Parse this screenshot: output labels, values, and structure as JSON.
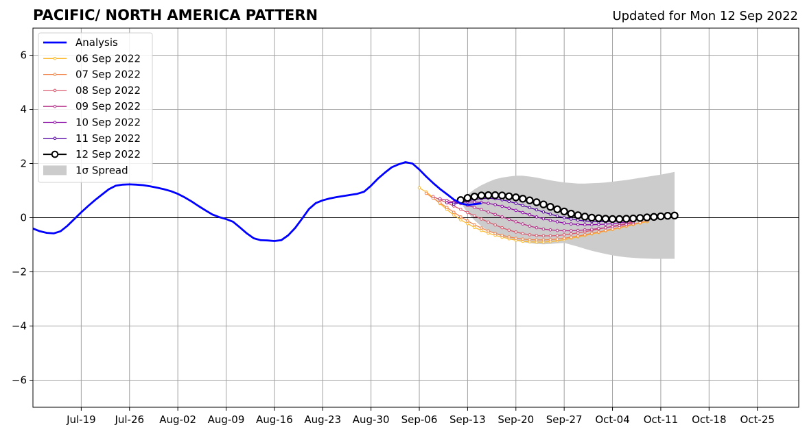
{
  "title": "PACIFIC/ NORTH AMERICA PATTERN",
  "subtitle": "Updated for Mon 12 Sep 2022",
  "chart_data": {
    "type": "line",
    "xaxis": {
      "start": "2022-07-12",
      "end": "2022-10-31",
      "ticks": [
        {
          "date": "2022-07-19",
          "label": "Jul-19"
        },
        {
          "date": "2022-07-26",
          "label": "Jul-26"
        },
        {
          "date": "2022-08-02",
          "label": "Aug-02"
        },
        {
          "date": "2022-08-09",
          "label": "Aug-09"
        },
        {
          "date": "2022-08-16",
          "label": "Aug-16"
        },
        {
          "date": "2022-08-23",
          "label": "Aug-23"
        },
        {
          "date": "2022-08-30",
          "label": "Aug-30"
        },
        {
          "date": "2022-09-06",
          "label": "Sep-06"
        },
        {
          "date": "2022-09-13",
          "label": "Sep-13"
        },
        {
          "date": "2022-09-20",
          "label": "Sep-20"
        },
        {
          "date": "2022-09-27",
          "label": "Sep-27"
        },
        {
          "date": "2022-10-04",
          "label": "Oct-04"
        },
        {
          "date": "2022-10-11",
          "label": "Oct-11"
        },
        {
          "date": "2022-10-18",
          "label": "Oct-18"
        },
        {
          "date": "2022-10-25",
          "label": "Oct-25"
        }
      ]
    },
    "yaxis": {
      "ylim": [
        -7,
        7
      ],
      "ticks": [
        {
          "value": 6,
          "label": "6"
        },
        {
          "value": 4,
          "label": "4"
        },
        {
          "value": 2,
          "label": "2"
        },
        {
          "value": 0,
          "label": "0"
        },
        {
          "value": -2,
          "label": "−2"
        },
        {
          "value": -4,
          "label": "−4"
        },
        {
          "value": -6,
          "label": "−6"
        }
      ]
    },
    "grid": true,
    "zero_line": true,
    "legend_position": "top-left",
    "analysis": {
      "name": "Analysis",
      "color": "#0000ff",
      "start": "2022-07-12",
      "values": [
        -0.4,
        -0.5,
        -0.56,
        -0.58,
        -0.5,
        -0.3,
        -0.05,
        0.2,
        0.43,
        0.65,
        0.85,
        1.05,
        1.18,
        1.22,
        1.23,
        1.22,
        1.2,
        1.16,
        1.11,
        1.05,
        0.98,
        0.88,
        0.75,
        0.6,
        0.43,
        0.27,
        0.12,
        0.02,
        -0.05,
        -0.15,
        -0.36,
        -0.58,
        -0.76,
        -0.83,
        -0.84,
        -0.86,
        -0.83,
        -0.65,
        -0.38,
        -0.04,
        0.32,
        0.54,
        0.64,
        0.71,
        0.76,
        0.8,
        0.84,
        0.88,
        0.96,
        1.18,
        1.44,
        1.66,
        1.86,
        1.97,
        2.05,
        2.0,
        1.78,
        1.52,
        1.28,
        1.06,
        0.87,
        0.67,
        0.53,
        0.47,
        0.5,
        0.53
      ]
    },
    "spread": {
      "name": "1σ Spread",
      "color": "#cccccc",
      "start": "2022-09-12",
      "upper": [
        0.6,
        0.85,
        1.05,
        1.2,
        1.32,
        1.42,
        1.48,
        1.52,
        1.55,
        1.55,
        1.52,
        1.48,
        1.43,
        1.38,
        1.34,
        1.3,
        1.28,
        1.26,
        1.26,
        1.27,
        1.28,
        1.3,
        1.33,
        1.36,
        1.39,
        1.43,
        1.47,
        1.51,
        1.55,
        1.59,
        1.64,
        1.69
      ],
      "lower": [
        0.55,
        0.18,
        -0.1,
        -0.32,
        -0.48,
        -0.6,
        -0.7,
        -0.78,
        -0.85,
        -0.9,
        -0.94,
        -0.97,
        -0.98,
        -0.97,
        -0.95,
        -0.93,
        -1.0,
        -1.07,
        -1.15,
        -1.22,
        -1.28,
        -1.34,
        -1.39,
        -1.43,
        -1.46,
        -1.48,
        -1.5,
        -1.51,
        -1.52,
        -1.52,
        -1.52,
        -1.52
      ]
    },
    "series": [
      {
        "name": "06 Sep 2022",
        "color": "#fcb92e",
        "start": "2022-09-06",
        "marker": "dot",
        "values": [
          1.1,
          0.95,
          0.75,
          0.52,
          0.3,
          0.1,
          -0.08,
          -0.22,
          -0.36,
          -0.47,
          -0.57,
          -0.65,
          -0.72,
          -0.78,
          -0.83,
          -0.87,
          -0.89,
          -0.9,
          -0.9,
          -0.88,
          -0.85,
          -0.81,
          -0.76,
          -0.71,
          -0.66,
          -0.6,
          -0.55,
          -0.49,
          -0.44,
          -0.38,
          -0.32,
          -0.26,
          -0.2,
          -0.15
        ]
      },
      {
        "name": "07 Sep 2022",
        "color": "#f1844b",
        "start": "2022-09-07",
        "marker": "dot",
        "values": [
          0.9,
          0.72,
          0.55,
          0.38,
          0.2,
          0.03,
          -0.12,
          -0.26,
          -0.38,
          -0.49,
          -0.58,
          -0.65,
          -0.71,
          -0.76,
          -0.79,
          -0.81,
          -0.82,
          -0.82,
          -0.81,
          -0.79,
          -0.76,
          -0.72,
          -0.68,
          -0.63,
          -0.58,
          -0.53,
          -0.47,
          -0.42,
          -0.36,
          -0.3,
          -0.24,
          -0.18,
          -0.12
        ]
      },
      {
        "name": "08 Sep 2022",
        "color": "#d8576b",
        "start": "2022-09-08",
        "marker": "dot",
        "values": [
          0.78,
          0.66,
          0.55,
          0.43,
          0.31,
          0.19,
          0.07,
          -0.05,
          -0.16,
          -0.27,
          -0.37,
          -0.46,
          -0.53,
          -0.59,
          -0.63,
          -0.66,
          -0.67,
          -0.67,
          -0.66,
          -0.63,
          -0.6,
          -0.56,
          -0.52,
          -0.47,
          -0.42,
          -0.37,
          -0.32,
          -0.27,
          -0.21,
          -0.16
        ]
      },
      {
        "name": "09 Sep 2022",
        "color": "#b83289",
        "start": "2022-09-09",
        "marker": "dot",
        "values": [
          0.7,
          0.64,
          0.58,
          0.52,
          0.45,
          0.38,
          0.3,
          0.21,
          0.12,
          0.03,
          -0.06,
          -0.15,
          -0.23,
          -0.31,
          -0.37,
          -0.42,
          -0.45,
          -0.47,
          -0.48,
          -0.48,
          -0.47,
          -0.45,
          -0.43,
          -0.4,
          -0.37,
          -0.33,
          -0.29,
          -0.24,
          -0.19
        ]
      },
      {
        "name": "10 Sep 2022",
        "color": "#8b0aa5",
        "start": "2022-09-10",
        "marker": "dot",
        "values": [
          0.55,
          0.56,
          0.57,
          0.58,
          0.58,
          0.56,
          0.53,
          0.48,
          0.42,
          0.35,
          0.27,
          0.19,
          0.11,
          0.03,
          -0.04,
          -0.1,
          -0.15,
          -0.2,
          -0.23,
          -0.25,
          -0.26,
          -0.26,
          -0.25,
          -0.24,
          -0.22,
          -0.19,
          -0.16,
          -0.12
        ]
      },
      {
        "name": "11 Sep 2022",
        "color": "#5302a3",
        "start": "2022-09-11",
        "marker": "dot",
        "values": [
          0.5,
          0.56,
          0.62,
          0.67,
          0.7,
          0.72,
          0.7,
          0.66,
          0.6,
          0.53,
          0.45,
          0.37,
          0.29,
          0.21,
          0.13,
          0.06,
          0.0,
          -0.05,
          -0.09,
          -0.12,
          -0.14,
          -0.15,
          -0.15,
          -0.14,
          -0.12,
          -0.1,
          -0.07
        ]
      },
      {
        "name": "12 Sep 2022",
        "color": "#000000",
        "start": "2022-09-12",
        "marker": "circle",
        "values": [
          0.65,
          0.73,
          0.78,
          0.82,
          0.83,
          0.83,
          0.82,
          0.79,
          0.75,
          0.7,
          0.64,
          0.57,
          0.49,
          0.4,
          0.31,
          0.23,
          0.15,
          0.09,
          0.04,
          0.0,
          -0.02,
          -0.04,
          -0.05,
          -0.05,
          -0.04,
          -0.03,
          -0.01,
          0.01,
          0.03,
          0.05,
          0.07,
          0.08
        ]
      }
    ],
    "legend": [
      {
        "label": "Analysis",
        "kind": "line",
        "color": "#0000ff"
      },
      {
        "label": "06 Sep 2022",
        "kind": "dotline",
        "color": "#fcb92e"
      },
      {
        "label": "07 Sep 2022",
        "kind": "dotline",
        "color": "#f1844b"
      },
      {
        "label": "08 Sep 2022",
        "kind": "dotline",
        "color": "#d8576b"
      },
      {
        "label": "09 Sep 2022",
        "kind": "dotline",
        "color": "#b83289"
      },
      {
        "label": "10 Sep 2022",
        "kind": "dotline",
        "color": "#8b0aa5"
      },
      {
        "label": "11 Sep 2022",
        "kind": "dotline",
        "color": "#5302a3"
      },
      {
        "label": "12 Sep 2022",
        "kind": "circleline",
        "color": "#000000"
      },
      {
        "label": "1σ Spread",
        "kind": "patch",
        "color": "#cccccc"
      }
    ]
  }
}
